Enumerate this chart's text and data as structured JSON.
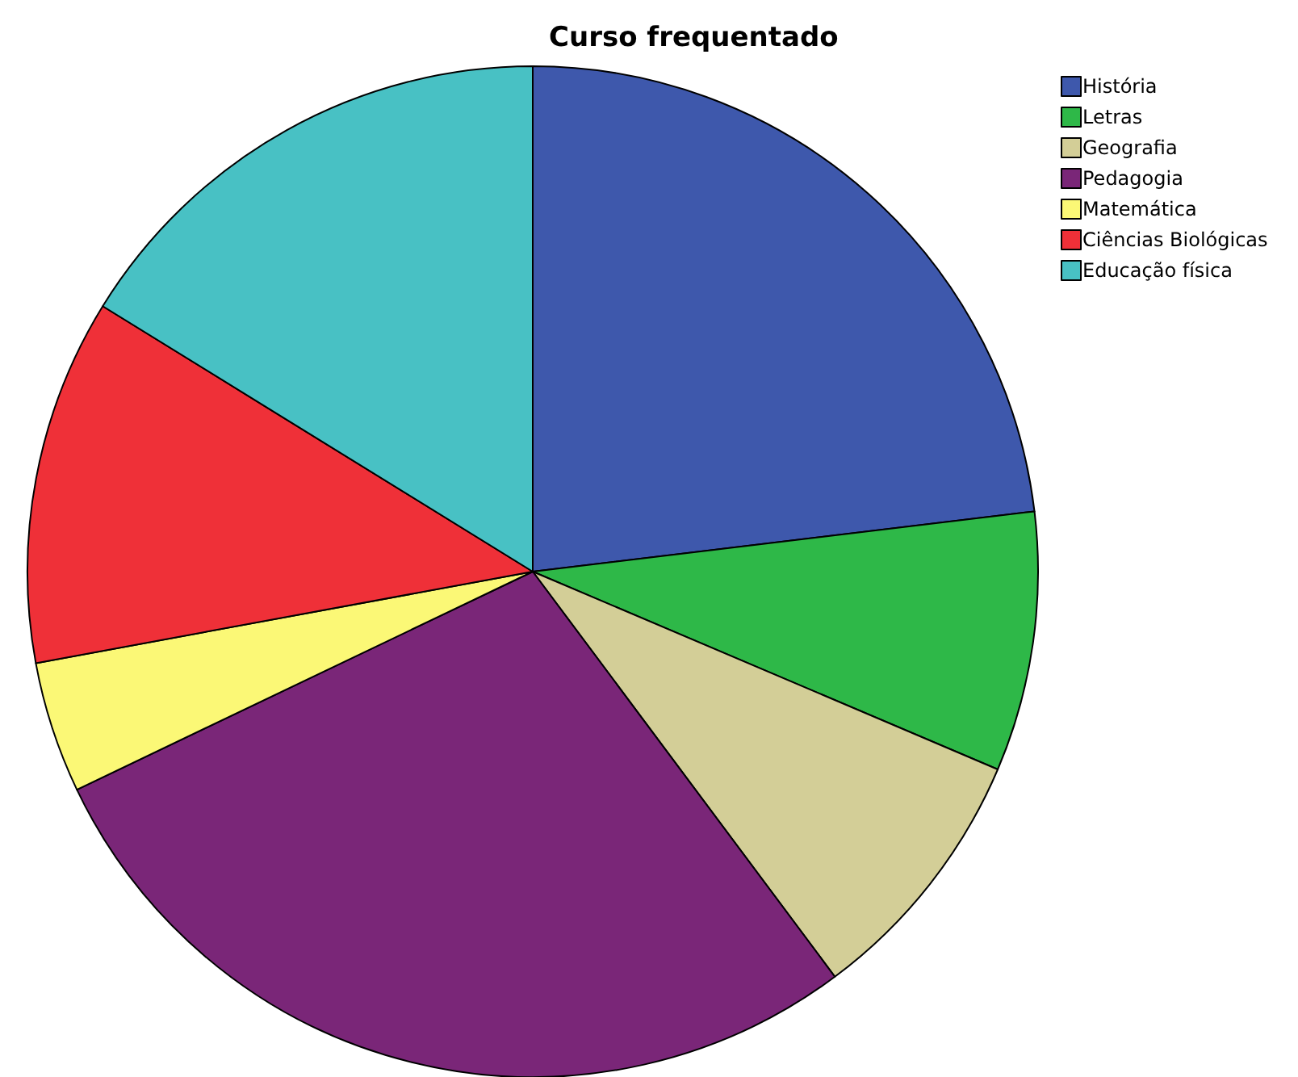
{
  "chart_data": {
    "type": "pie",
    "title": "Curso frequentado",
    "categories": [
      "História",
      "Letras",
      "Geografia",
      "Pedagogia",
      "Matemática",
      "Ciências Biológicas",
      "Educação física"
    ],
    "values": [
      23.1,
      8.3,
      8.4,
      28.1,
      4.2,
      11.7,
      16.2
    ],
    "colors": [
      "#3e58ac",
      "#2eb848",
      "#d3ce97",
      "#7a2678",
      "#fbf876",
      "#ef3038",
      "#48c1c4"
    ],
    "legend": "top right"
  }
}
